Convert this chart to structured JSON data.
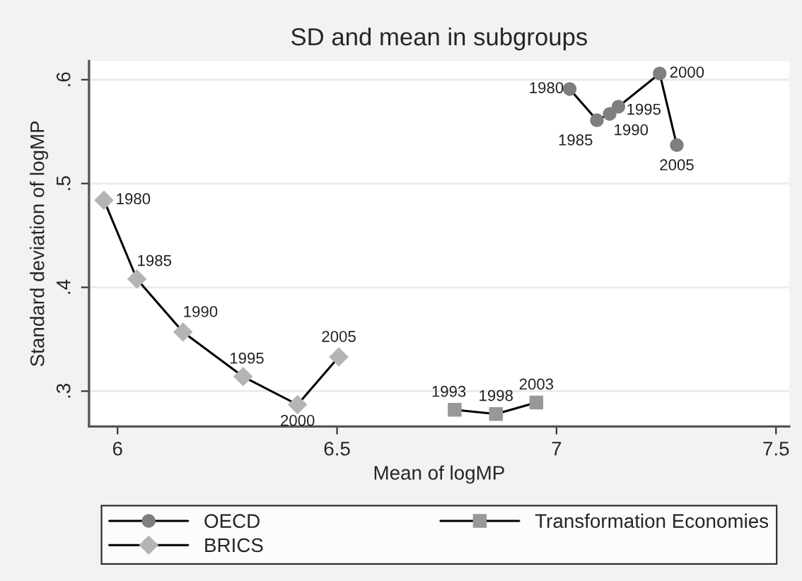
{
  "chart_data": {
    "type": "line",
    "title": "SD and mean in subgroups",
    "xlabel": "Mean of logMP",
    "ylabel": "Standard deviation of logMP",
    "xlim": [
      5.935,
      7.53
    ],
    "xticks": [
      6,
      6.5,
      7,
      7.5
    ],
    "ylim": [
      0.266,
      0.618
    ],
    "yticks": [
      {
        "value": 0.3,
        "label": ".3"
      },
      {
        "value": 0.4,
        "label": ".4"
      },
      {
        "value": 0.5,
        "label": ".5"
      },
      {
        "value": 0.6,
        "label": ".6"
      }
    ],
    "grid": "y",
    "legend": "bottom",
    "series": [
      {
        "name": "OECD",
        "color": "#7f7f7f",
        "marker": "circle",
        "x": [
          7.03,
          7.092,
          7.121,
          7.141,
          7.235,
          7.274
        ],
        "values": [
          0.591,
          0.561,
          0.567,
          0.574,
          0.606,
          0.537
        ]
      },
      {
        "name": "BRICS",
        "color": "#b4b4b4",
        "marker": "diamond",
        "x": [
          5.969,
          6.044,
          6.149,
          6.286,
          6.41,
          6.504
        ],
        "values": [
          0.484,
          0.408,
          0.357,
          0.314,
          0.287,
          0.333
        ]
      },
      {
        "name": "Transformation Economies",
        "color": "#989898",
        "marker": "square",
        "x": [
          6.768,
          6.862,
          6.954
        ],
        "values": [
          0.282,
          0.278,
          0.289
        ]
      }
    ],
    "annotations": [
      {
        "text": "1980",
        "x": 7.03,
        "y": 0.591
      },
      {
        "text": "1985",
        "x": 7.092,
        "y": 0.561
      },
      {
        "text": "1990",
        "x": 7.121,
        "y": 0.567
      },
      {
        "text": "1995",
        "x": 7.141,
        "y": 0.574
      },
      {
        "text": "2000",
        "x": 7.235,
        "y": 0.606
      },
      {
        "text": "2005",
        "x": 7.274,
        "y": 0.537
      },
      {
        "text": "1980",
        "x": 5.969,
        "y": 0.484
      },
      {
        "text": "1985",
        "x": 6.044,
        "y": 0.408
      },
      {
        "text": "1990",
        "x": 6.149,
        "y": 0.357
      },
      {
        "text": "1995",
        "x": 6.286,
        "y": 0.314
      },
      {
        "text": "2000",
        "x": 6.41,
        "y": 0.287
      },
      {
        "text": "2005",
        "x": 6.504,
        "y": 0.333
      },
      {
        "text": "1993",
        "x": 6.768,
        "y": 0.282
      },
      {
        "text": "1998",
        "x": 6.862,
        "y": 0.278
      },
      {
        "text": "2003",
        "x": 6.954,
        "y": 0.289
      }
    ]
  }
}
